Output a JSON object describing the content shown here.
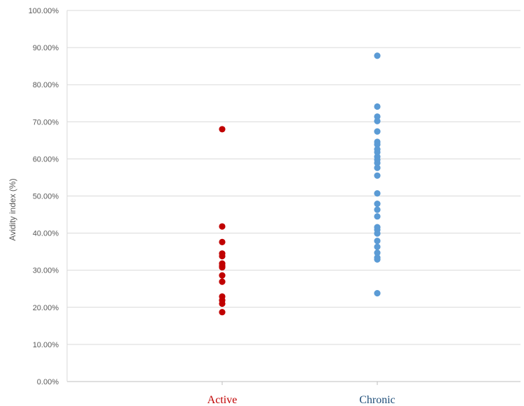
{
  "chart_data": {
    "type": "scatter",
    "title": "",
    "xlabel": "",
    "ylabel": "Avidity index (%)",
    "ylim": [
      0,
      100
    ],
    "yticks": [
      "0.00%",
      "10.00%",
      "20.00%",
      "30.00%",
      "40.00%",
      "50.00%",
      "60.00%",
      "70.00%",
      "80.00%",
      "90.00%",
      "100.00%"
    ],
    "grid": true,
    "categories": [
      "Active",
      "Chronic"
    ],
    "category_colors": [
      "#c00000",
      "#1f4e79"
    ],
    "series": [
      {
        "category": "Active",
        "color": "#c00000",
        "values": [
          68.0,
          41.8,
          37.6,
          34.5,
          33.8,
          31.8,
          31.2,
          30.8,
          28.6,
          26.9,
          22.9,
          21.9,
          21.0,
          18.7
        ]
      },
      {
        "category": "Chronic",
        "color": "#5b9bd5",
        "values": [
          87.8,
          74.1,
          71.4,
          70.2,
          67.4,
          64.6,
          63.9,
          62.6,
          61.8,
          60.6,
          59.8,
          58.9,
          57.6,
          55.5,
          50.7,
          47.9,
          46.3,
          44.5,
          41.6,
          40.9,
          39.9,
          37.9,
          36.3,
          34.7,
          33.4,
          32.9,
          23.8
        ]
      }
    ]
  }
}
